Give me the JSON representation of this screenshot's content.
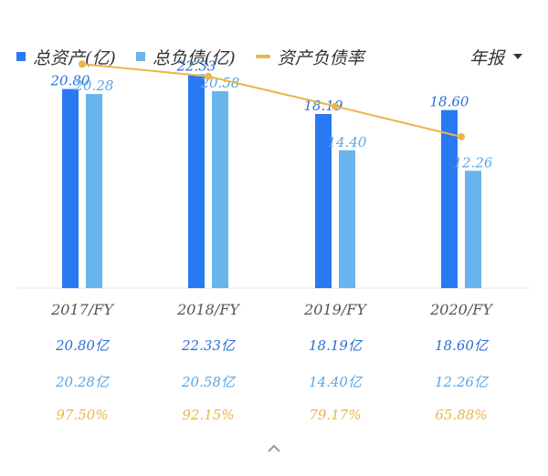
{
  "legend": {
    "assets_label": "总资产(亿)",
    "liabilities_label": "总负债(亿)",
    "ratio_label": "资产负债率"
  },
  "period_selector": {
    "label": "年报"
  },
  "colors": {
    "assets": "#2979f2",
    "liabilities": "#6ab4ee",
    "ratio": "#eab54a"
  },
  "chart_data": {
    "type": "bar",
    "categories": [
      "2017/FY",
      "2018/FY",
      "2019/FY",
      "2020/FY"
    ],
    "series": [
      {
        "name": "总资产(亿)",
        "type": "bar",
        "values": [
          20.8,
          22.33,
          18.19,
          18.6
        ]
      },
      {
        "name": "总负债(亿)",
        "type": "bar",
        "values": [
          20.28,
          20.58,
          14.4,
          12.26
        ]
      },
      {
        "name": "资产负债率",
        "type": "line",
        "values": [
          97.5,
          92.15,
          79.17,
          65.88
        ]
      }
    ],
    "data_labels": {
      "assets": [
        "20.80",
        "22.33",
        "18.19",
        "18.60"
      ],
      "liabilities": [
        "20.28",
        "20.58",
        "14.40",
        "12.26"
      ]
    },
    "ylim": [
      0,
      24
    ],
    "ratio_lim": [
      0,
      100
    ],
    "legend_position": "top"
  },
  "table": {
    "years": [
      "2017/FY",
      "2018/FY",
      "2019/FY",
      "2020/FY"
    ],
    "assets": [
      "20.80亿",
      "22.33亿",
      "18.19亿",
      "18.60亿"
    ],
    "liabilities": [
      "20.28亿",
      "20.58亿",
      "14.40亿",
      "12.26亿"
    ],
    "ratios": [
      "97.50%",
      "92.15%",
      "79.17%",
      "65.88%"
    ]
  }
}
